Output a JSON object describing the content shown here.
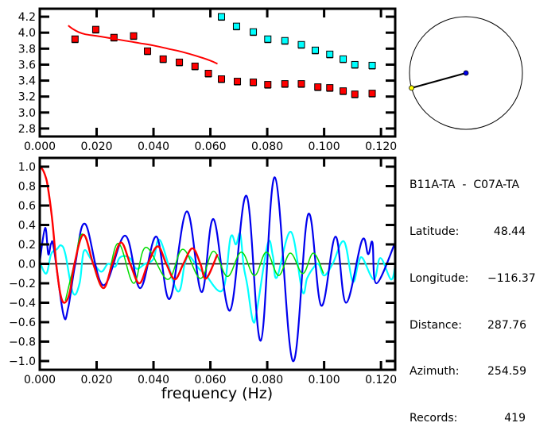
{
  "colors": {
    "red": "#ff0000",
    "cyan": "#00ffff",
    "blue": "#0000ee",
    "green": "#00dd00",
    "yellow": "#ffff00",
    "axis": "#000000"
  },
  "info": {
    "title": "B11A-TA  -  C07A-TA",
    "rows": [
      {
        "label": "Latitude:",
        "value": "48.44"
      },
      {
        "label": "Longitude:",
        "value": "-116.37"
      },
      {
        "label": "Distance:",
        "value": "287.76"
      },
      {
        "label": "Azimuth:",
        "value": "254.59"
      },
      {
        "label": "Records:",
        "value": "419"
      }
    ]
  },
  "map": {
    "azimuth_deg": 254.59
  },
  "chart_data": [
    {
      "type": "scatter",
      "title": "",
      "xlabel": "",
      "ylabel": "",
      "xlim": [
        0,
        0.125
      ],
      "ylim": [
        2.7,
        4.3
      ],
      "xticks": [
        "0.000",
        "0.020",
        "0.040",
        "0.060",
        "0.080",
        "0.100",
        "0.120"
      ],
      "xtick_values": [
        0,
        0.02,
        0.04,
        0.06,
        0.08,
        0.1,
        0.12
      ],
      "yticks": [
        "2.8",
        "3.0",
        "3.2",
        "3.4",
        "3.6",
        "3.8",
        "4.0",
        "4.2"
      ],
      "ytick_values": [
        2.8,
        3.0,
        3.2,
        3.4,
        3.6,
        3.8,
        4.0,
        4.2
      ],
      "series": [
        {
          "name": "red-points",
          "color": "red",
          "kind": "markers",
          "x": [
            0.0124,
            0.0197,
            0.0261,
            0.033,
            0.0379,
            0.0434,
            0.0491,
            0.0546,
            0.0593,
            0.0639,
            0.0695,
            0.0751,
            0.0802,
            0.0862,
            0.092,
            0.0978,
            0.102,
            0.1067,
            0.1108,
            0.1169
          ],
          "y": [
            3.92,
            4.04,
            3.94,
            3.96,
            3.77,
            3.67,
            3.63,
            3.58,
            3.49,
            3.42,
            3.39,
            3.38,
            3.35,
            3.36,
            3.36,
            3.32,
            3.31,
            3.27,
            3.23,
            3.24
          ]
        },
        {
          "name": "cyan-points",
          "color": "cyan",
          "kind": "markers",
          "x": [
            0.0639,
            0.0692,
            0.0751,
            0.0802,
            0.0862,
            0.092,
            0.0969,
            0.102,
            0.1067,
            0.1108,
            0.1169
          ],
          "y": [
            4.2,
            4.08,
            4.01,
            3.92,
            3.9,
            3.85,
            3.78,
            3.73,
            3.67,
            3.6,
            3.59
          ]
        },
        {
          "name": "red-curve",
          "color": "red",
          "kind": "line",
          "x": [
            0.01,
            0.0115,
            0.0135,
            0.016,
            0.02,
            0.025,
            0.03,
            0.035,
            0.04,
            0.045,
            0.05,
            0.055,
            0.06,
            0.0625
          ],
          "y": [
            4.09,
            4.05,
            4.01,
            3.98,
            3.96,
            3.93,
            3.9,
            3.87,
            3.84,
            3.8,
            3.76,
            3.71,
            3.65,
            3.61
          ]
        }
      ]
    },
    {
      "type": "line",
      "title": "",
      "xlabel": "frequency (Hz)",
      "ylabel": "",
      "xlim": [
        0,
        0.125
      ],
      "ylim": [
        -1.09,
        1.09
      ],
      "xticks": [
        "0.000",
        "0.020",
        "0.040",
        "0.060",
        "0.080",
        "0.100",
        "0.120"
      ],
      "xtick_values": [
        0,
        0.02,
        0.04,
        0.06,
        0.08,
        0.1,
        0.12
      ],
      "yticks": [
        "1.0",
        "0.8",
        "0.6",
        "0.4",
        "0.2",
        "0.0",
        "-0.2",
        "-0.4",
        "-0.6",
        "-0.8",
        "-1.0"
      ],
      "ytick_values": [
        1.0,
        0.8,
        0.6,
        0.4,
        0.2,
        0.0,
        -0.2,
        -0.4,
        -0.6,
        -0.8,
        -1.0
      ],
      "series": [
        {
          "name": "cyan",
          "color": "cyan",
          "width": 2.2,
          "x": [
            0,
            0.0023,
            0.004,
            0.006,
            0.0075,
            0.009,
            0.0117,
            0.014,
            0.0155,
            0.018,
            0.0215,
            0.024,
            0.0265,
            0.028,
            0.03,
            0.032,
            0.034,
            0.037,
            0.04,
            0.0424,
            0.0484,
            0.051,
            0.0525,
            0.056,
            0.058,
            0.0643,
            0.0671,
            0.069,
            0.0705,
            0.0717,
            0.073,
            0.075,
            0.0765,
            0.0802,
            0.082,
            0.0834,
            0.0883,
            0.0923,
            0.094,
            0.096,
            0.098,
            0.1,
            0.103,
            0.107,
            0.11,
            0.112,
            0.1135,
            0.1175,
            0.1198,
            0.1235,
            0.125
          ],
          "y": [
            0.02,
            -0.1,
            0.1,
            0.15,
            0.19,
            0.1,
            -0.3,
            -0.2,
            0.13,
            0.05,
            -0.08,
            0.0,
            -0.03,
            0.06,
            0.08,
            0.05,
            -0.05,
            0.0,
            0.05,
            0.24,
            -0.28,
            0.0,
            0.08,
            -0.05,
            -0.1,
            -0.27,
            0.27,
            0.2,
            0.31,
            -0.02,
            -0.22,
            -0.59,
            -0.45,
            0.21,
            0.08,
            -0.14,
            0.33,
            -0.28,
            -0.15,
            -0.05,
            0.0,
            -0.12,
            0.0,
            0.23,
            -0.18,
            0.0,
            0.06,
            -0.16,
            0.06,
            -0.16,
            -0.02
          ]
        },
        {
          "name": "blue",
          "color": "blue",
          "width": 2.2,
          "x": [
            0,
            0.0019,
            0.003,
            0.004,
            0.005,
            0.0083,
            0.01,
            0.0125,
            0.016,
            0.0223,
            0.03,
            0.0353,
            0.041,
            0.0457,
            0.0517,
            0.0569,
            0.0611,
            0.0669,
            0.0727,
            0.0777,
            0.0827,
            0.089,
            0.0944,
            0.099,
            0.104,
            0.1077,
            0.1133,
            0.1155,
            0.117,
            0.1184,
            0.125
          ],
          "y": [
            0.02,
            0.37,
            0.1,
            0.21,
            0.15,
            -0.52,
            -0.45,
            0.0,
            0.41,
            -0.22,
            0.29,
            -0.25,
            0.28,
            -0.36,
            0.54,
            -0.29,
            0.46,
            -0.48,
            0.7,
            -0.79,
            0.89,
            -1.0,
            0.51,
            -0.43,
            0.28,
            -0.4,
            0.24,
            0.1,
            0.22,
            -0.2,
            0.22
          ]
        },
        {
          "name": "green",
          "color": "green",
          "width": 1.5,
          "x": [
            0.009,
            0.0122,
            0.0154,
            0.0222,
            0.0275,
            0.033,
            0.0373,
            0.045,
            0.0503,
            0.0565,
            0.0611,
            0.066,
            0.0709,
            0.0755,
            0.0797,
            0.084,
            0.0881,
            0.0925,
            0.0962,
            0.0998
          ],
          "y": [
            -0.38,
            0.0,
            0.3,
            -0.25,
            0.21,
            -0.2,
            0.17,
            -0.16,
            0.15,
            -0.15,
            0.13,
            -0.13,
            0.12,
            -0.12,
            0.12,
            -0.12,
            0.11,
            -0.1,
            0.11,
            -0.1
          ]
        },
        {
          "name": "red",
          "color": "red",
          "width": 2.4,
          "x": [
            0,
            0.001,
            0.002,
            0.0028,
            0.0042,
            0.0052,
            0.0058,
            0.0072,
            0.0086,
            0.0105,
            0.0122,
            0.0154,
            0.0188,
            0.0224,
            0.0255,
            0.0286,
            0.0318,
            0.035,
            0.038,
            0.0415,
            0.0445,
            0.0475,
            0.0505,
            0.0537,
            0.0565,
            0.0585,
            0.0625
          ],
          "y": [
            1.0,
            0.97,
            0.9,
            0.8,
            0.5,
            0.2,
            0.0,
            -0.3,
            -0.4,
            -0.3,
            0.0,
            0.3,
            0.0,
            -0.25,
            0.0,
            0.22,
            0.0,
            -0.2,
            0.0,
            0.18,
            0.0,
            -0.16,
            0.0,
            0.16,
            0.0,
            -0.15,
            0.1
          ]
        }
      ]
    }
  ]
}
